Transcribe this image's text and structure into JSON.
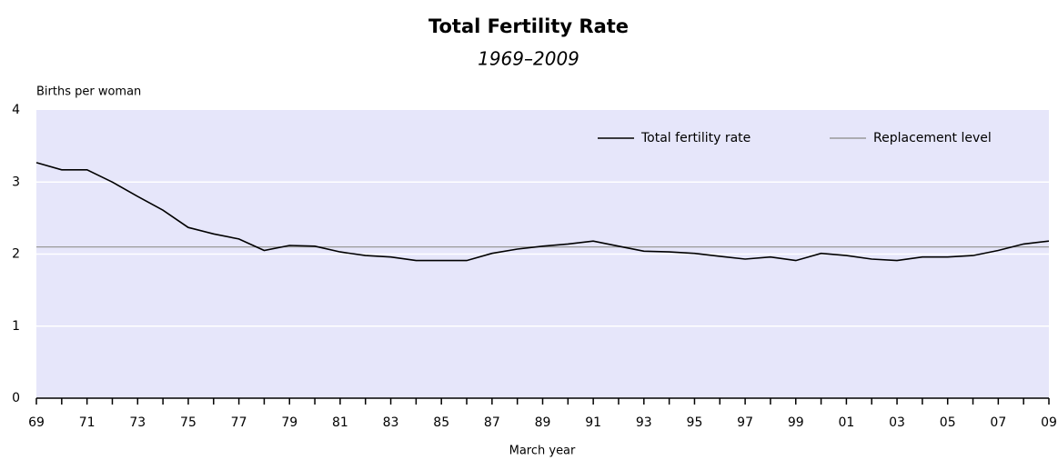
{
  "chart_data": {
    "type": "line",
    "title": "Total Fertility Rate",
    "subtitle": "1969–2009",
    "y_label": "Births per woman",
    "x_label": "March year",
    "categories": [
      "69",
      null,
      "71",
      null,
      "73",
      null,
      "75",
      null,
      "77",
      null,
      "79",
      null,
      "81",
      null,
      "83",
      null,
      "85",
      null,
      "87",
      null,
      "89",
      null,
      "91",
      null,
      "93",
      null,
      "95",
      null,
      "97",
      null,
      "99",
      null,
      "01",
      null,
      "03",
      null,
      "05",
      null,
      "07",
      null,
      "09"
    ],
    "series": [
      {
        "name": "Total fertility rate",
        "color": "#000000",
        "values": [
          3.27,
          3.17,
          3.17,
          3.0,
          2.8,
          2.61,
          2.37,
          2.28,
          2.21,
          2.05,
          2.12,
          2.11,
          2.03,
          1.98,
          1.96,
          1.91,
          1.91,
          1.91,
          2.01,
          2.07,
          2.11,
          2.14,
          2.18,
          2.11,
          2.04,
          2.03,
          2.01,
          1.97,
          1.93,
          1.96,
          1.91,
          2.01,
          1.98,
          1.93,
          1.91,
          1.96,
          1.96,
          1.98,
          2.05,
          2.14,
          2.18
        ]
      },
      {
        "name": "Replacement level",
        "color": "#999999",
        "values": [
          2.1,
          2.1,
          2.1,
          2.1,
          2.1,
          2.1,
          2.1,
          2.1,
          2.1,
          2.1,
          2.1,
          2.1,
          2.1,
          2.1,
          2.1,
          2.1,
          2.1,
          2.1,
          2.1,
          2.1,
          2.1,
          2.1,
          2.1,
          2.1,
          2.1,
          2.1,
          2.1,
          2.1,
          2.1,
          2.1,
          2.1,
          2.1,
          2.1,
          2.1,
          2.1,
          2.1,
          2.1,
          2.1,
          2.1,
          2.1,
          2.1
        ]
      }
    ],
    "ylim": [
      0,
      4
    ],
    "yticks": [
      0,
      1,
      2,
      3,
      4
    ],
    "grid": true,
    "plot_background": "#e6e6fa",
    "legend": "top-right"
  }
}
